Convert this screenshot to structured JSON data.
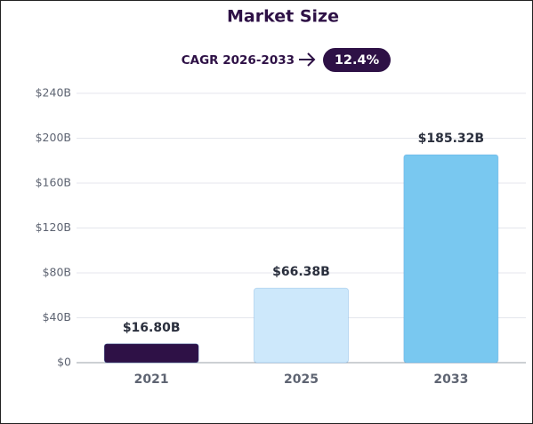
{
  "chart_data": {
    "type": "bar",
    "title": "Market Size",
    "annotation": "CAGR 2026-2033",
    "annotation_value": "12.4%",
    "categories": [
      "2021",
      "2025",
      "2033"
    ],
    "values": [
      16.8,
      66.38,
      185.32
    ],
    "value_labels": [
      "$16.80B",
      "$66.38B",
      "$185.32B"
    ],
    "colors": [
      "#2e1146",
      "#cde8fb",
      "#79c8f0"
    ],
    "ylim": [
      0,
      240
    ],
    "yticks": [
      {
        "value": 0,
        "label": "$0"
      },
      {
        "value": 40,
        "label": "$40B"
      },
      {
        "value": 80,
        "label": "$80B"
      },
      {
        "value": 120,
        "label": "$120B"
      },
      {
        "value": 160,
        "label": "$160B"
      },
      {
        "value": 200,
        "label": "$200B"
      },
      {
        "value": 240,
        "label": "$240B"
      }
    ],
    "grid": true
  }
}
